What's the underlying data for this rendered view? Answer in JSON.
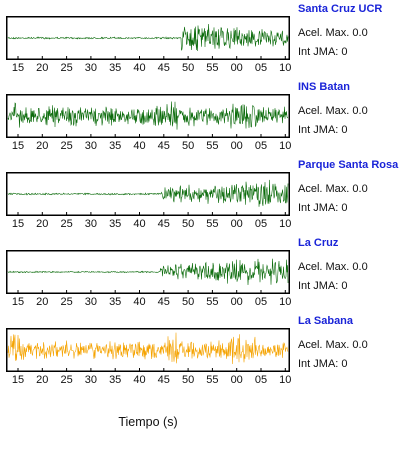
{
  "chart_data": {
    "type": "line",
    "xlabel": "Tiempo (s)",
    "x_tick_labels": [
      "15",
      "20",
      "25",
      "30",
      "35",
      "40",
      "45",
      "50",
      "55",
      "00",
      "05",
      "10"
    ],
    "acel_label": "Acel. Max.",
    "jma_label": "Int JMA:",
    "series": [
      {
        "name": "Santa Cruz UCR",
        "acel_max": "0.0",
        "int_jma": "0",
        "color": "#0b6b0b",
        "onset_tick": 48.6,
        "quiet_amp": 0.05,
        "loud_amp": 0.9,
        "envelope": "decay"
      },
      {
        "name": "INS Batan",
        "acel_max": "0.0",
        "int_jma": "0",
        "color": "#0b6b0b",
        "onset_tick": 14.0,
        "quiet_amp": 0.25,
        "loud_amp": 0.55,
        "envelope": "flat"
      },
      {
        "name": "Parque Santa Rosa",
        "acel_max": "0.0",
        "int_jma": "0",
        "color": "#0b6b0b",
        "onset_tick": 44.5,
        "quiet_amp": 0.05,
        "loud_amp": 0.9,
        "envelope": "grow"
      },
      {
        "name": "La Cruz",
        "acel_max": "0.0",
        "int_jma": "0",
        "color": "#0b6b0b",
        "onset_tick": 44.3,
        "quiet_amp": 0.04,
        "loud_amp": 0.85,
        "envelope": "grow"
      },
      {
        "name": "La Sabana",
        "acel_max": "0.0",
        "int_jma": "0",
        "color": "#f5a300",
        "onset_tick": 14.0,
        "quiet_amp": 0.45,
        "loud_amp": 0.55,
        "envelope": "flat"
      }
    ]
  }
}
